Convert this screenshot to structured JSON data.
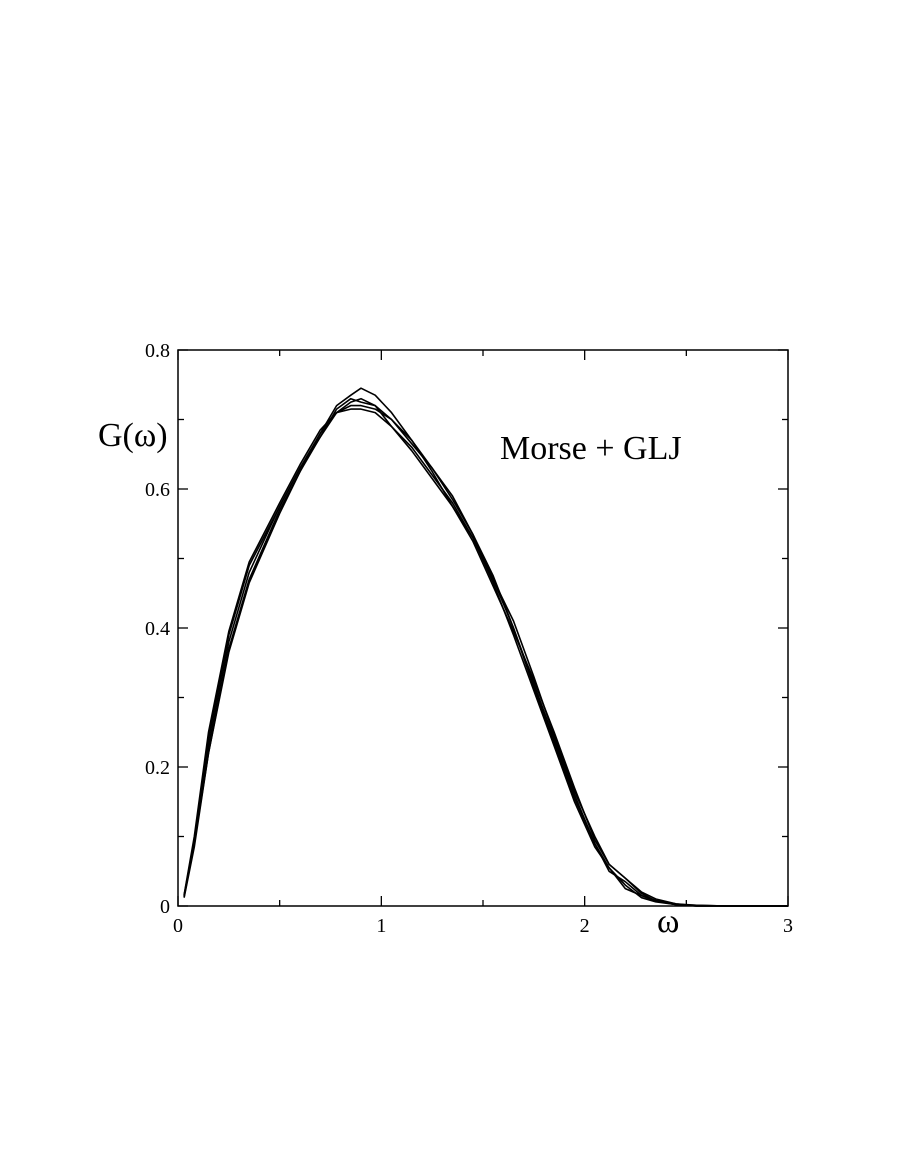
{
  "chart_data": {
    "type": "line",
    "title": "",
    "xlabel": "ω",
    "ylabel": "G(ω)",
    "annotation": "Morse + GLJ",
    "xlim": [
      0,
      3
    ],
    "ylim": [
      0,
      0.8
    ],
    "xticks": [
      0,
      1,
      2,
      3
    ],
    "xtick_labels": [
      "0",
      "1",
      "2",
      "3"
    ],
    "yticks": [
      0,
      0.2,
      0.4,
      0.6,
      0.8
    ],
    "ytick_labels": [
      "0",
      "0.2",
      "0.4",
      "0.6",
      "0.8"
    ],
    "x_minor_step": 0.5,
    "y_minor_step": 0.1,
    "grid": false,
    "legend": "none",
    "line_color": "#000000",
    "series": [
      {
        "x": [
          0.03,
          0.08,
          0.15,
          0.25,
          0.35,
          0.5,
          0.6,
          0.7,
          0.78,
          0.85,
          0.9,
          0.97,
          1.05,
          1.15,
          1.25,
          1.35,
          1.45,
          1.55,
          1.65,
          1.75,
          1.85,
          1.95,
          2.05,
          2.12,
          2.2,
          2.28,
          2.35,
          2.45,
          2.55,
          2.7,
          3.0
        ],
        "y": [
          0.015,
          0.09,
          0.23,
          0.38,
          0.48,
          0.575,
          0.63,
          0.68,
          0.71,
          0.72,
          0.72,
          0.715,
          0.7,
          0.67,
          0.63,
          0.585,
          0.535,
          0.47,
          0.4,
          0.32,
          0.24,
          0.16,
          0.09,
          0.05,
          0.035,
          0.015,
          0.007,
          0.002,
          0.0,
          0.0,
          0.0
        ]
      },
      {
        "x": [
          0.03,
          0.08,
          0.15,
          0.25,
          0.35,
          0.5,
          0.6,
          0.7,
          0.78,
          0.85,
          0.9,
          0.97,
          1.05,
          1.15,
          1.25,
          1.35,
          1.45,
          1.55,
          1.65,
          1.75,
          1.85,
          1.95,
          2.05,
          2.12,
          2.2,
          2.28,
          2.35,
          2.45,
          2.55,
          2.7,
          3.0
        ],
        "y": [
          0.012,
          0.085,
          0.22,
          0.37,
          0.47,
          0.57,
          0.625,
          0.68,
          0.72,
          0.735,
          0.745,
          0.735,
          0.71,
          0.67,
          0.625,
          0.575,
          0.53,
          0.465,
          0.39,
          0.31,
          0.23,
          0.15,
          0.085,
          0.055,
          0.03,
          0.012,
          0.006,
          0.002,
          0.001,
          0.0,
          0.0
        ]
      },
      {
        "x": [
          0.03,
          0.08,
          0.15,
          0.25,
          0.35,
          0.5,
          0.6,
          0.7,
          0.78,
          0.85,
          0.9,
          0.97,
          1.05,
          1.15,
          1.25,
          1.35,
          1.45,
          1.55,
          1.65,
          1.75,
          1.85,
          1.95,
          2.05,
          2.12,
          2.2,
          2.28,
          2.35,
          2.45,
          2.55,
          2.7,
          3.0
        ],
        "y": [
          0.015,
          0.095,
          0.24,
          0.39,
          0.49,
          0.575,
          0.63,
          0.675,
          0.71,
          0.725,
          0.73,
          0.72,
          0.69,
          0.66,
          0.62,
          0.58,
          0.53,
          0.47,
          0.41,
          0.33,
          0.245,
          0.165,
          0.1,
          0.06,
          0.04,
          0.02,
          0.01,
          0.003,
          0.0,
          0.0,
          0.0
        ]
      },
      {
        "x": [
          0.03,
          0.08,
          0.15,
          0.25,
          0.35,
          0.5,
          0.6,
          0.7,
          0.78,
          0.85,
          0.9,
          0.97,
          1.05,
          1.15,
          1.25,
          1.35,
          1.45,
          1.55,
          1.65,
          1.75,
          1.85,
          1.95,
          2.05,
          2.12,
          2.2,
          2.28,
          2.35,
          2.45,
          2.55,
          2.7,
          3.0
        ],
        "y": [
          0.013,
          0.09,
          0.22,
          0.365,
          0.465,
          0.565,
          0.625,
          0.675,
          0.715,
          0.73,
          0.725,
          0.72,
          0.7,
          0.665,
          0.63,
          0.59,
          0.535,
          0.475,
          0.4,
          0.315,
          0.235,
          0.155,
          0.09,
          0.055,
          0.025,
          0.015,
          0.008,
          0.003,
          0.001,
          0.0,
          0.0
        ]
      },
      {
        "x": [
          0.03,
          0.08,
          0.15,
          0.25,
          0.35,
          0.5,
          0.6,
          0.7,
          0.78,
          0.85,
          0.9,
          0.97,
          1.05,
          1.15,
          1.25,
          1.35,
          1.45,
          1.55,
          1.65,
          1.75,
          1.85,
          1.95,
          2.05,
          2.12,
          2.2,
          2.28,
          2.35,
          2.45,
          2.55,
          2.7,
          3.0
        ],
        "y": [
          0.016,
          0.1,
          0.25,
          0.395,
          0.495,
          0.58,
          0.635,
          0.685,
          0.71,
          0.715,
          0.715,
          0.71,
          0.69,
          0.655,
          0.615,
          0.575,
          0.525,
          0.46,
          0.395,
          0.325,
          0.25,
          0.17,
          0.095,
          0.06,
          0.04,
          0.018,
          0.007,
          0.002,
          0.0,
          0.0,
          0.0
        ]
      }
    ]
  }
}
